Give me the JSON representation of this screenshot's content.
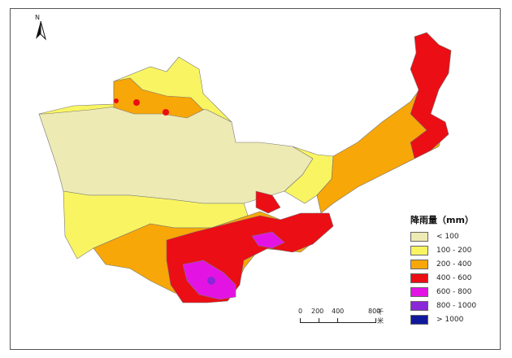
{
  "map": {
    "north_label": "N",
    "legend": {
      "title": "降雨量（mm）",
      "items": [
        {
          "label": "< 100",
          "color": "#EDEAB4"
        },
        {
          "label": "100 - 200",
          "color": "#F9F562"
        },
        {
          "label": "200 - 400",
          "color": "#F7A708"
        },
        {
          "label": "400 - 600",
          "color": "#EB0E14"
        },
        {
          "label": "600 - 800",
          "color": "#E314E3"
        },
        {
          "label": "800 - 1000",
          "color": "#8A27D8"
        },
        {
          "label": "> 1000",
          "color": "#10189C"
        }
      ]
    },
    "scale": {
      "labels": [
        "0",
        "200",
        "400",
        "800"
      ],
      "unit": "千米"
    }
  }
}
